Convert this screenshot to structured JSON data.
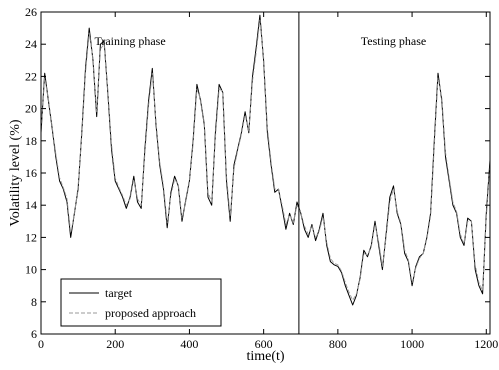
{
  "chart_data": {
    "type": "line",
    "xlabel": "time(t)",
    "ylabel": "Volatility level (%)",
    "xlim": [
      0,
      1210
    ],
    "ylim": [
      6,
      26
    ],
    "xticks": [
      0,
      200,
      400,
      600,
      800,
      1000,
      1200
    ],
    "yticks": [
      6,
      8,
      10,
      12,
      14,
      16,
      18,
      20,
      22,
      24,
      26
    ],
    "x_tick_labels": [
      "0",
      "200",
      "400",
      "600",
      "800",
      "1000",
      "1200"
    ],
    "y_tick_labels": [
      "6",
      "8",
      "10",
      "12",
      "14",
      "16",
      "18",
      "20",
      "22",
      "24",
      "26"
    ],
    "grid": false,
    "legend_position": "bottom-left",
    "divider_x": 695,
    "annotations": [
      {
        "text": "Training phase",
        "x": 240,
        "y": 24.2
      },
      {
        "text": "Testing phase",
        "x": 950,
        "y": 24.2
      }
    ],
    "series": [
      {
        "name": "target",
        "color": "#000000",
        "dash": "solid",
        "x": [
          0,
          10,
          20,
          30,
          40,
          50,
          60,
          70,
          80,
          90,
          100,
          110,
          120,
          130,
          140,
          150,
          160,
          170,
          180,
          190,
          200,
          210,
          220,
          230,
          240,
          250,
          260,
          270,
          280,
          290,
          300,
          310,
          320,
          330,
          340,
          350,
          360,
          370,
          380,
          390,
          400,
          410,
          420,
          430,
          440,
          450,
          460,
          470,
          480,
          490,
          500,
          510,
          520,
          530,
          540,
          550,
          560,
          570,
          580,
          590,
          600,
          610,
          620,
          630,
          640,
          650,
          660,
          670,
          680,
          690,
          700,
          710,
          720,
          730,
          740,
          750,
          760,
          770,
          780,
          790,
          800,
          810,
          820,
          830,
          840,
          850,
          860,
          870,
          880,
          890,
          900,
          910,
          920,
          930,
          940,
          950,
          960,
          970,
          980,
          990,
          1000,
          1010,
          1020,
          1030,
          1040,
          1050,
          1060,
          1070,
          1080,
          1090,
          1100,
          1110,
          1120,
          1130,
          1140,
          1150,
          1160,
          1170,
          1180,
          1190,
          1200,
          1210
        ],
        "values": [
          18.5,
          22.2,
          20.5,
          18.8,
          17.0,
          15.5,
          15.0,
          14.2,
          12.0,
          13.5,
          15.0,
          18.5,
          22.5,
          25.0,
          23.0,
          19.5,
          24.0,
          24.2,
          21.0,
          17.5,
          15.5,
          15.0,
          14.5,
          13.8,
          14.5,
          15.8,
          14.2,
          13.8,
          17.5,
          20.5,
          22.5,
          19.0,
          16.5,
          15.0,
          12.6,
          14.8,
          15.8,
          15.2,
          13.0,
          14.3,
          15.5,
          18.0,
          21.5,
          20.5,
          19.0,
          14.5,
          14.0,
          18.5,
          21.5,
          21.0,
          15.5,
          13.0,
          16.5,
          17.5,
          18.5,
          19.8,
          18.5,
          22.0,
          23.8,
          25.8,
          23.0,
          18.5,
          16.5,
          14.8,
          15.0,
          13.8,
          12.5,
          13.5,
          12.8,
          14.2,
          13.5,
          12.5,
          12.0,
          12.8,
          11.8,
          12.5,
          13.5,
          11.5,
          10.5,
          10.3,
          10.2,
          9.8,
          9.0,
          8.4,
          7.8,
          8.4,
          9.5,
          11.2,
          10.8,
          11.5,
          13.0,
          11.5,
          10.0,
          12.2,
          14.5,
          15.2,
          13.5,
          12.8,
          11.0,
          10.5,
          9.0,
          10.2,
          10.8,
          11.0,
          12.0,
          13.5,
          18.0,
          22.2,
          20.5,
          17.0,
          15.5,
          14.0,
          13.5,
          12.0,
          11.5,
          13.2,
          13.0,
          10.0,
          9.0,
          8.5,
          13.5,
          16.8
        ]
      },
      {
        "name": "proposed approach",
        "color": "#9a9a9a",
        "dash": "dashed",
        "x": [
          0,
          10,
          20,
          30,
          40,
          50,
          60,
          70,
          80,
          90,
          100,
          110,
          120,
          130,
          140,
          150,
          160,
          170,
          180,
          190,
          200,
          210,
          220,
          230,
          240,
          250,
          260,
          270,
          280,
          290,
          300,
          310,
          320,
          330,
          340,
          350,
          360,
          370,
          380,
          390,
          400,
          410,
          420,
          430,
          440,
          450,
          460,
          470,
          480,
          490,
          500,
          510,
          520,
          530,
          540,
          550,
          560,
          570,
          580,
          590,
          600,
          610,
          620,
          630,
          640,
          650,
          660,
          670,
          680,
          690,
          700,
          710,
          720,
          730,
          740,
          750,
          760,
          770,
          780,
          790,
          800,
          810,
          820,
          830,
          840,
          850,
          860,
          870,
          880,
          890,
          900,
          910,
          920,
          930,
          940,
          950,
          960,
          970,
          980,
          990,
          1000,
          1010,
          1020,
          1030,
          1040,
          1050,
          1060,
          1070,
          1080,
          1090,
          1100,
          1110,
          1120,
          1130,
          1140,
          1150,
          1160,
          1170,
          1180,
          1190,
          1200,
          1210
        ],
        "values": [
          18.7,
          21.9,
          20.6,
          18.9,
          17.2,
          15.7,
          15.1,
          14.4,
          12.3,
          13.4,
          15.2,
          18.3,
          22.2,
          24.7,
          23.1,
          19.8,
          23.7,
          24.0,
          21.2,
          17.8,
          15.7,
          15.1,
          14.6,
          14.0,
          14.4,
          15.6,
          14.4,
          14.0,
          17.2,
          20.2,
          22.2,
          19.2,
          16.7,
          15.2,
          12.9,
          14.6,
          15.6,
          15.3,
          13.2,
          14.2,
          15.4,
          17.8,
          21.2,
          20.6,
          19.1,
          14.8,
          14.2,
          18.2,
          21.2,
          21.1,
          15.8,
          13.3,
          16.3,
          17.4,
          18.4,
          19.6,
          18.6,
          21.7,
          23.5,
          25.5,
          23.2,
          18.8,
          16.7,
          15.0,
          15.0,
          14.0,
          12.8,
          13.4,
          12.9,
          14.0,
          13.5,
          12.7,
          12.2,
          12.7,
          12.0,
          12.4,
          13.3,
          11.7,
          10.7,
          10.4,
          10.3,
          9.9,
          9.2,
          8.6,
          8.1,
          8.5,
          9.4,
          11.0,
          10.9,
          11.4,
          12.8,
          11.7,
          10.2,
          12.0,
          14.2,
          15.0,
          13.6,
          12.9,
          11.2,
          10.6,
          9.2,
          10.1,
          10.7,
          11.0,
          11.9,
          13.3,
          17.7,
          21.9,
          20.7,
          17.3,
          15.7,
          14.2,
          13.6,
          12.2,
          11.6,
          13.0,
          13.0,
          10.3,
          9.2,
          8.7,
          13.2,
          16.5
        ]
      }
    ]
  }
}
